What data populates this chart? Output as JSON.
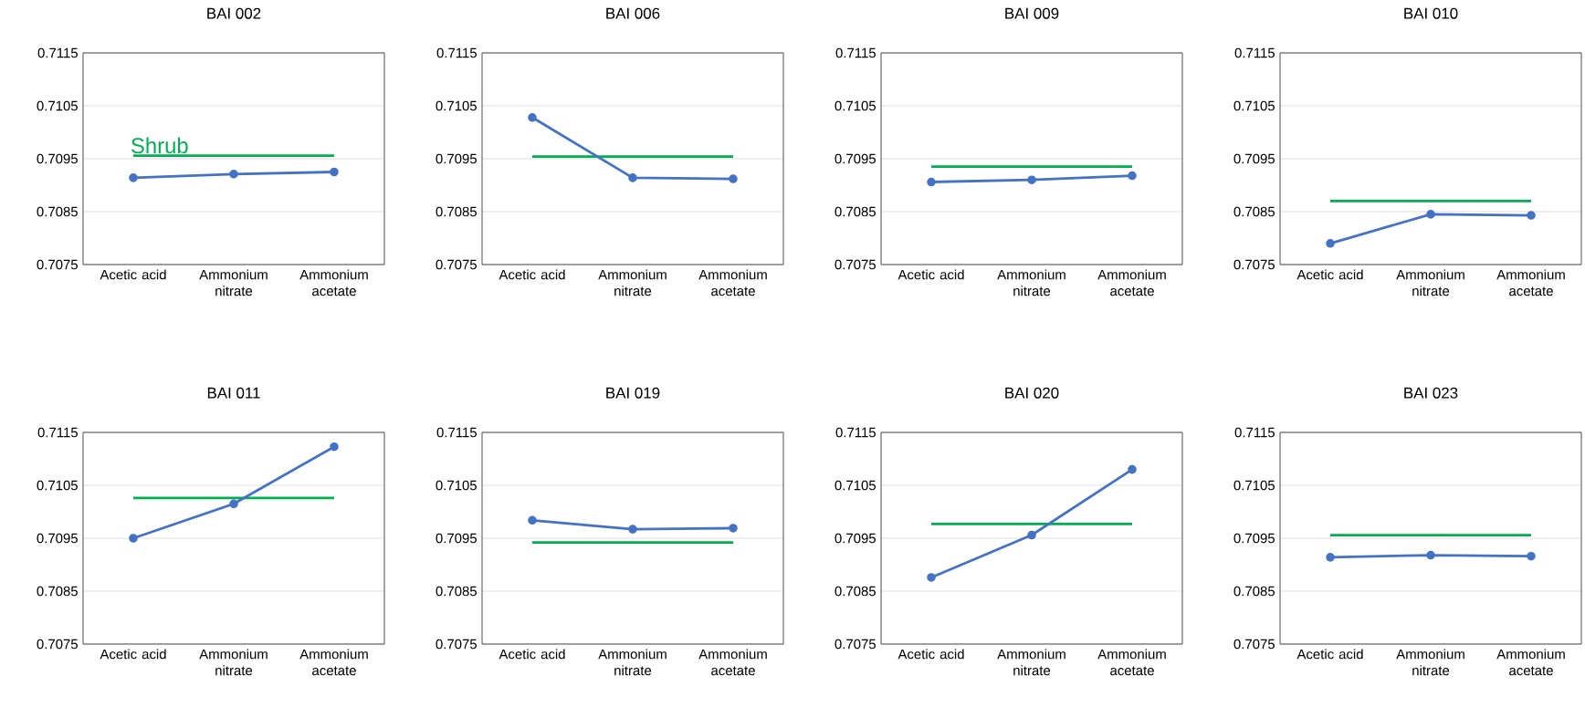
{
  "chart_data": [
    {
      "type": "line",
      "title": "BAI 002",
      "categories": [
        "Acetic acid",
        "Ammonium nitrate",
        "Ammonium acetate"
      ],
      "ylim": [
        0.7075,
        0.7115
      ],
      "yticks": [
        0.7075,
        0.7085,
        0.7095,
        0.7105,
        0.7115
      ],
      "grid": "y",
      "series": [
        {
          "name": "Shrub",
          "color": "#00b050",
          "marker": "none",
          "values": [
            0.70956,
            0.70956,
            0.70956
          ]
        },
        {
          "color": "#4472c4",
          "marker": "circle",
          "values": [
            0.70914,
            0.70921,
            0.70925
          ]
        }
      ]
    },
    {
      "type": "line",
      "title": "BAI 006",
      "categories": [
        "Acetic acid",
        "Ammonium nitrate",
        "Ammonium acetate"
      ],
      "ylim": [
        0.7075,
        0.7115
      ],
      "yticks": [
        0.7075,
        0.7085,
        0.7095,
        0.7105,
        0.7115
      ],
      "grid": "y",
      "series": [
        {
          "color": "#00b050",
          "marker": "none",
          "values": [
            0.70954,
            0.70954,
            0.70954
          ]
        },
        {
          "color": "#4472c4",
          "marker": "circle",
          "values": [
            0.71028,
            0.70914,
            0.70912
          ]
        }
      ]
    },
    {
      "type": "line",
      "title": "BAI 009",
      "categories": [
        "Acetic acid",
        "Ammonium nitrate",
        "Ammonium acetate"
      ],
      "ylim": [
        0.7075,
        0.7115
      ],
      "yticks": [
        0.7075,
        0.7085,
        0.7095,
        0.7105,
        0.7115
      ],
      "grid": "y",
      "series": [
        {
          "color": "#00b050",
          "marker": "none",
          "values": [
            0.70935,
            0.70935,
            0.70935
          ]
        },
        {
          "color": "#4472c4",
          "marker": "circle",
          "values": [
            0.70906,
            0.7091,
            0.70918
          ]
        }
      ]
    },
    {
      "type": "line",
      "title": "BAI 010",
      "categories": [
        "Acetic acid",
        "Ammonium nitrate",
        "Ammonium acetate"
      ],
      "ylim": [
        0.7075,
        0.7115
      ],
      "yticks": [
        0.7075,
        0.7085,
        0.7095,
        0.7105,
        0.7115
      ],
      "grid": "y",
      "series": [
        {
          "color": "#00b050",
          "marker": "none",
          "values": [
            0.7087,
            0.7087,
            0.7087
          ]
        },
        {
          "color": "#4472c4",
          "marker": "circle",
          "values": [
            0.7079,
            0.70845,
            0.70843
          ]
        }
      ]
    },
    {
      "type": "line",
      "title": "BAI 011",
      "categories": [
        "Acetic acid",
        "Ammonium nitrate",
        "Ammonium acetate"
      ],
      "ylim": [
        0.7075,
        0.7115
      ],
      "yticks": [
        0.7075,
        0.7085,
        0.7095,
        0.7105,
        0.7115
      ],
      "grid": "y",
      "series": [
        {
          "color": "#00b050",
          "marker": "none",
          "values": [
            0.71026,
            0.71026,
            0.71026
          ]
        },
        {
          "color": "#4472c4",
          "marker": "circle",
          "values": [
            0.7095,
            0.71015,
            0.71123
          ]
        }
      ]
    },
    {
      "type": "line",
      "title": "BAI 019",
      "categories": [
        "Acetic acid",
        "Ammonium nitrate",
        "Ammonium acetate"
      ],
      "ylim": [
        0.7075,
        0.7115
      ],
      "yticks": [
        0.7075,
        0.7085,
        0.7095,
        0.7105,
        0.7115
      ],
      "grid": "y",
      "series": [
        {
          "color": "#00b050",
          "marker": "none",
          "values": [
            0.70942,
            0.70942,
            0.70942
          ]
        },
        {
          "color": "#4472c4",
          "marker": "circle",
          "values": [
            0.70984,
            0.70967,
            0.70969
          ]
        }
      ]
    },
    {
      "type": "line",
      "title": "BAI 020",
      "categories": [
        "Acetic acid",
        "Ammonium nitrate",
        "Ammonium acetate"
      ],
      "ylim": [
        0.7075,
        0.7115
      ],
      "yticks": [
        0.7075,
        0.7085,
        0.7095,
        0.7105,
        0.7115
      ],
      "grid": "y",
      "series": [
        {
          "color": "#00b050",
          "marker": "none",
          "values": [
            0.70977,
            0.70977,
            0.70977
          ]
        },
        {
          "color": "#4472c4",
          "marker": "circle",
          "values": [
            0.70876,
            0.70956,
            0.7108
          ]
        }
      ]
    },
    {
      "type": "line",
      "title": "BAI 023",
      "categories": [
        "Acetic acid",
        "Ammonium nitrate",
        "Ammonium acetate"
      ],
      "ylim": [
        0.7075,
        0.7115
      ],
      "yticks": [
        0.7075,
        0.7085,
        0.7095,
        0.7105,
        0.7115
      ],
      "grid": "y",
      "series": [
        {
          "color": "#00b050",
          "marker": "none",
          "values": [
            0.70956,
            0.70956,
            0.70956
          ]
        },
        {
          "color": "#4472c4",
          "marker": "circle",
          "values": [
            0.70914,
            0.70918,
            0.70916
          ]
        }
      ]
    }
  ]
}
